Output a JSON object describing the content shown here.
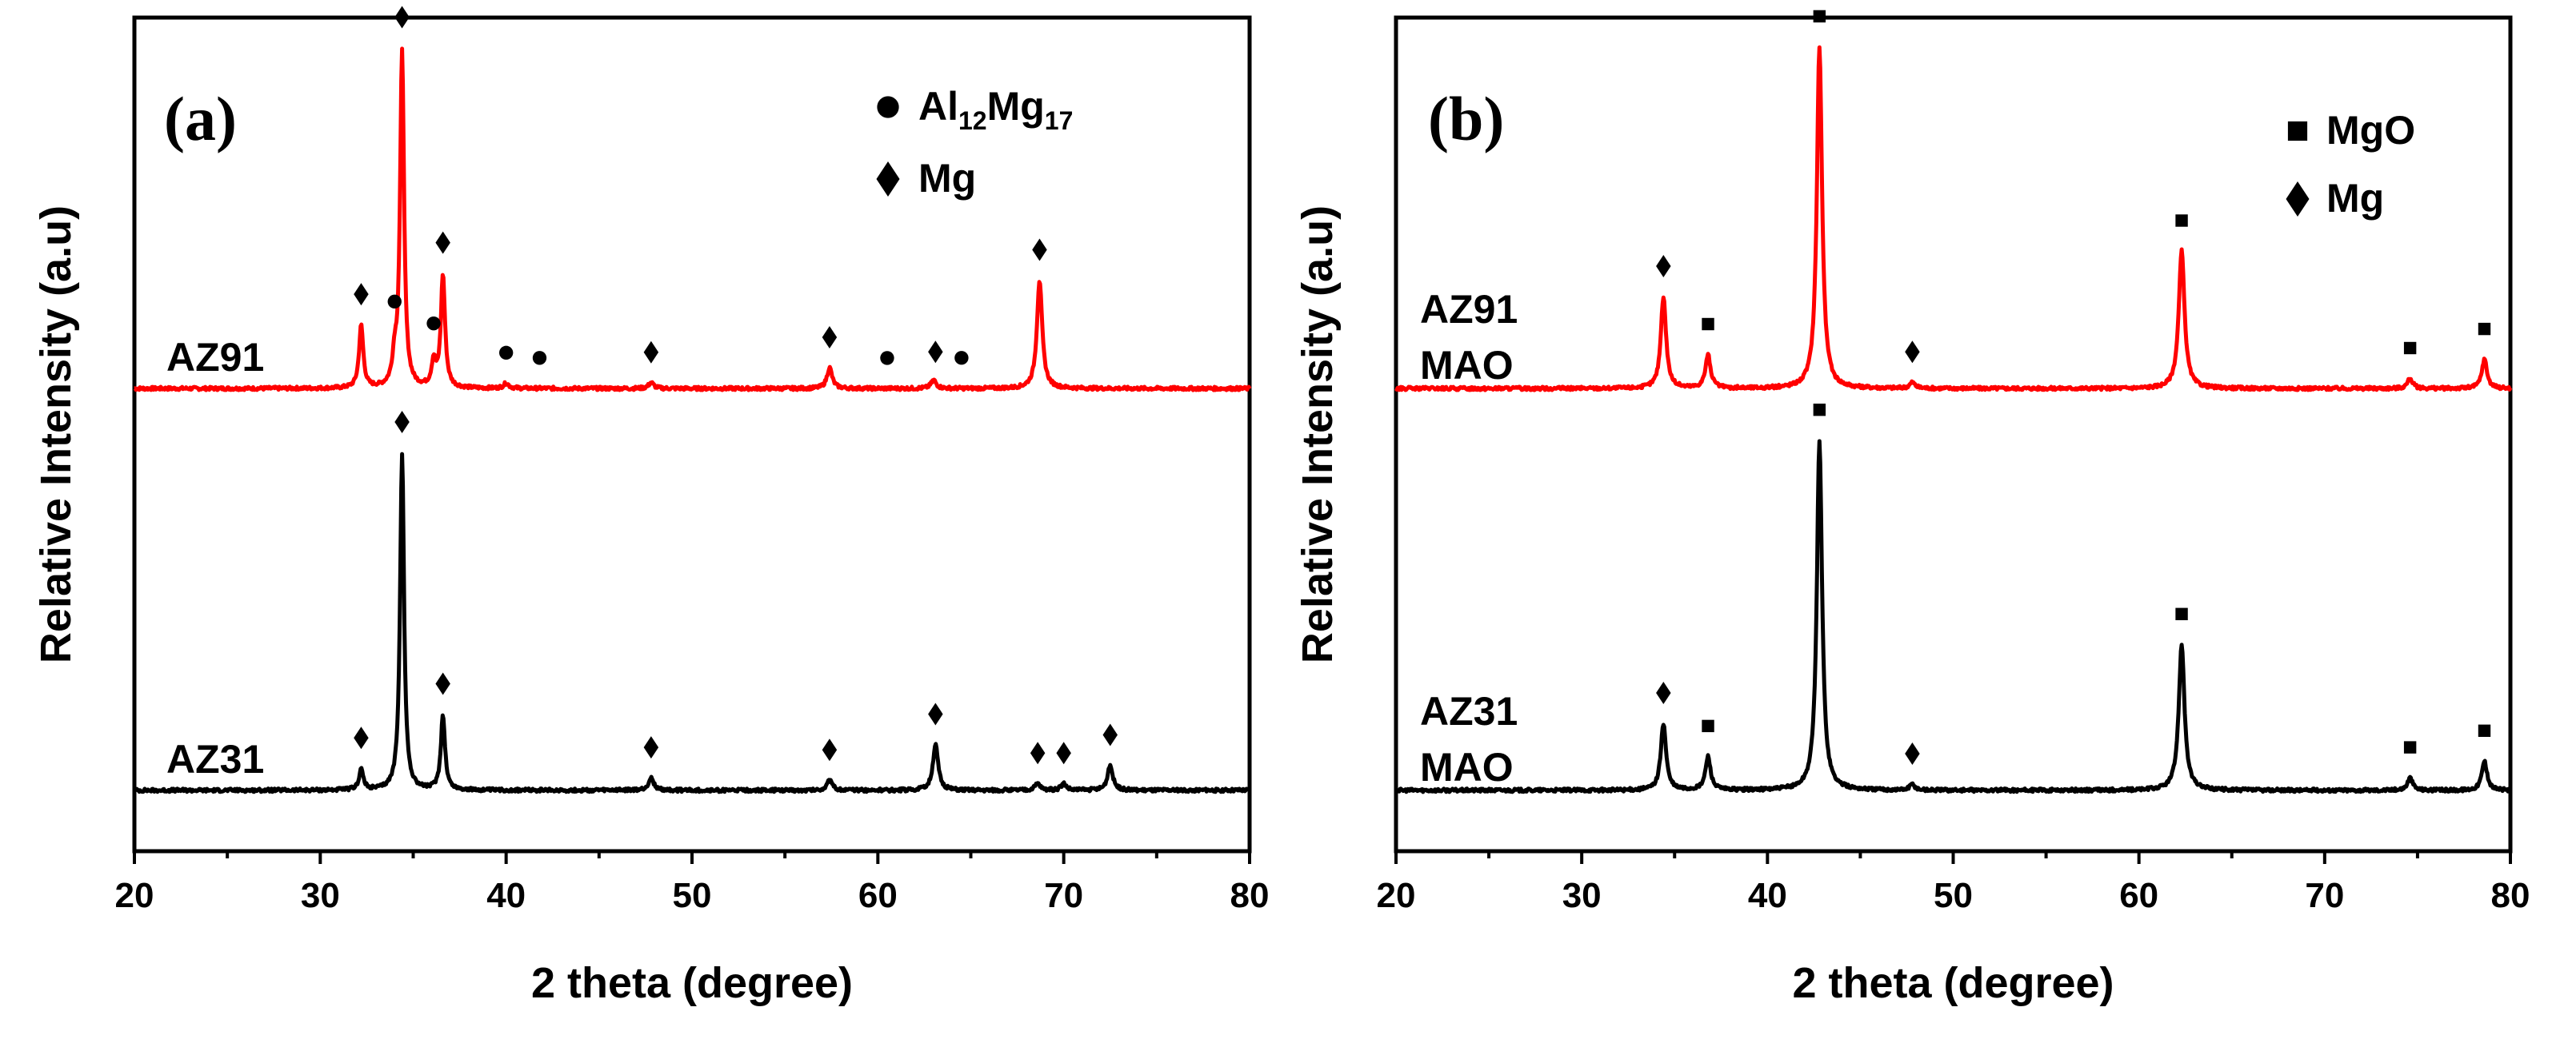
{
  "chart_data": [
    {
      "type": "line",
      "panel_label": "(a)",
      "xlabel": "2 theta (degree)",
      "ylabel": "Relative Intensity (a.u)",
      "xlim": [
        20,
        80
      ],
      "xticks": [
        20,
        30,
        40,
        50,
        60,
        70,
        80
      ],
      "legend": {
        "position": "top-right",
        "entries": [
          {
            "symbol": "circle",
            "label_main": "Al",
            "sub1": "12",
            "mid": "Mg",
            "sub2": "17"
          },
          {
            "symbol": "diamond",
            "label_main": "Mg",
            "sub1": "",
            "mid": "",
            "sub2": ""
          }
        ]
      },
      "series": [
        {
          "name": "AZ91",
          "label_lines": [
            "AZ91"
          ],
          "color": "#ff0000",
          "baseline": 0.555,
          "peaks": [
            {
              "x": 32.2,
              "h": 0.075,
              "w": 0.16
            },
            {
              "x": 34.0,
              "h": 0.03,
              "w": 0.16
            },
            {
              "x": 34.4,
              "h": 0.405,
              "w": 0.15
            },
            {
              "x": 36.1,
              "h": 0.03,
              "w": 0.16
            },
            {
              "x": 36.6,
              "h": 0.135,
              "w": 0.16
            },
            {
              "x": 40.0,
              "h": 0.006,
              "w": 0.2
            },
            {
              "x": 47.8,
              "h": 0.007,
              "w": 0.2
            },
            {
              "x": 57.4,
              "h": 0.025,
              "w": 0.2
            },
            {
              "x": 63.0,
              "h": 0.01,
              "w": 0.2
            },
            {
              "x": 68.7,
              "h": 0.13,
              "w": 0.2
            }
          ],
          "markers": [
            {
              "x": 32.2,
              "symbol": "diamond"
            },
            {
              "x": 34.0,
              "symbol": "circle"
            },
            {
              "x": 34.4,
              "symbol": "diamond"
            },
            {
              "x": 36.1,
              "symbol": "circle"
            },
            {
              "x": 36.6,
              "symbol": "diamond"
            },
            {
              "x": 40.0,
              "symbol": "circle"
            },
            {
              "x": 41.8,
              "symbol": "circle"
            },
            {
              "x": 47.8,
              "symbol": "diamond"
            },
            {
              "x": 57.4,
              "symbol": "diamond"
            },
            {
              "x": 60.5,
              "symbol": "circle"
            },
            {
              "x": 63.1,
              "symbol": "diamond"
            },
            {
              "x": 64.5,
              "symbol": "circle"
            },
            {
              "x": 68.7,
              "symbol": "diamond"
            }
          ]
        },
        {
          "name": "AZ31",
          "label_lines": [
            "AZ31"
          ],
          "color": "#000000",
          "baseline": 0.073,
          "peaks": [
            {
              "x": 32.2,
              "h": 0.025,
              "w": 0.16
            },
            {
              "x": 34.4,
              "h": 0.405,
              "w": 0.15
            },
            {
              "x": 36.6,
              "h": 0.09,
              "w": 0.16
            },
            {
              "x": 47.8,
              "h": 0.015,
              "w": 0.2
            },
            {
              "x": 57.4,
              "h": 0.012,
              "w": 0.2
            },
            {
              "x": 63.1,
              "h": 0.055,
              "w": 0.2
            },
            {
              "x": 68.6,
              "h": 0.008,
              "w": 0.2
            },
            {
              "x": 70.0,
              "h": 0.008,
              "w": 0.2
            },
            {
              "x": 72.5,
              "h": 0.03,
              "w": 0.2
            }
          ],
          "markers": [
            {
              "x": 32.2,
              "symbol": "diamond"
            },
            {
              "x": 34.4,
              "symbol": "diamond"
            },
            {
              "x": 36.6,
              "symbol": "diamond"
            },
            {
              "x": 47.8,
              "symbol": "diamond"
            },
            {
              "x": 57.4,
              "symbol": "diamond"
            },
            {
              "x": 63.1,
              "symbol": "diamond"
            },
            {
              "x": 68.6,
              "symbol": "diamond"
            },
            {
              "x": 70.0,
              "symbol": "diamond"
            },
            {
              "x": 72.5,
              "symbol": "diamond"
            }
          ]
        }
      ]
    },
    {
      "type": "line",
      "panel_label": "(b)",
      "xlabel": "2 theta (degree)",
      "ylabel": "Relative Intensity (a.u)",
      "xlim": [
        20,
        80
      ],
      "xticks": [
        20,
        30,
        40,
        50,
        60,
        70,
        80
      ],
      "legend": {
        "position": "top-right",
        "entries": [
          {
            "symbol": "square",
            "label_main": "MgO",
            "sub1": "",
            "mid": "",
            "sub2": ""
          },
          {
            "symbol": "diamond",
            "label_main": "Mg",
            "sub1": "",
            "mid": "",
            "sub2": ""
          }
        ]
      },
      "series": [
        {
          "name": "AZ91 MAO",
          "label_lines": [
            "AZ91",
            "MAO"
          ],
          "color": "#ff0000",
          "baseline": 0.555,
          "peaks": [
            {
              "x": 34.4,
              "h": 0.11,
              "w": 0.2
            },
            {
              "x": 36.8,
              "h": 0.04,
              "w": 0.2
            },
            {
              "x": 42.8,
              "h": 0.41,
              "w": 0.2
            },
            {
              "x": 47.8,
              "h": 0.007,
              "w": 0.2
            },
            {
              "x": 62.3,
              "h": 0.165,
              "w": 0.22
            },
            {
              "x": 74.6,
              "h": 0.012,
              "w": 0.2
            },
            {
              "x": 78.6,
              "h": 0.035,
              "w": 0.2
            }
          ],
          "markers": [
            {
              "x": 34.4,
              "symbol": "diamond"
            },
            {
              "x": 36.8,
              "symbol": "square"
            },
            {
              "x": 42.8,
              "symbol": "square"
            },
            {
              "x": 47.8,
              "symbol": "diamond"
            },
            {
              "x": 62.3,
              "symbol": "square"
            },
            {
              "x": 74.6,
              "symbol": "square"
            },
            {
              "x": 78.6,
              "symbol": "square"
            }
          ]
        },
        {
          "name": "AZ31 MAO",
          "label_lines": [
            "AZ31",
            "MAO"
          ],
          "color": "#000000",
          "baseline": 0.073,
          "peaks": [
            {
              "x": 34.4,
              "h": 0.08,
              "w": 0.2
            },
            {
              "x": 36.8,
              "h": 0.04,
              "w": 0.2
            },
            {
              "x": 42.8,
              "h": 0.42,
              "w": 0.2
            },
            {
              "x": 47.8,
              "h": 0.007,
              "w": 0.2
            },
            {
              "x": 62.3,
              "h": 0.175,
              "w": 0.22
            },
            {
              "x": 74.6,
              "h": 0.015,
              "w": 0.2
            },
            {
              "x": 78.6,
              "h": 0.035,
              "w": 0.2
            }
          ],
          "markers": [
            {
              "x": 34.4,
              "symbol": "diamond"
            },
            {
              "x": 36.8,
              "symbol": "square"
            },
            {
              "x": 42.8,
              "symbol": "square"
            },
            {
              "x": 47.8,
              "symbol": "diamond"
            },
            {
              "x": 62.3,
              "symbol": "square"
            },
            {
              "x": 74.6,
              "symbol": "square"
            },
            {
              "x": 78.6,
              "symbol": "square"
            }
          ]
        }
      ]
    }
  ]
}
